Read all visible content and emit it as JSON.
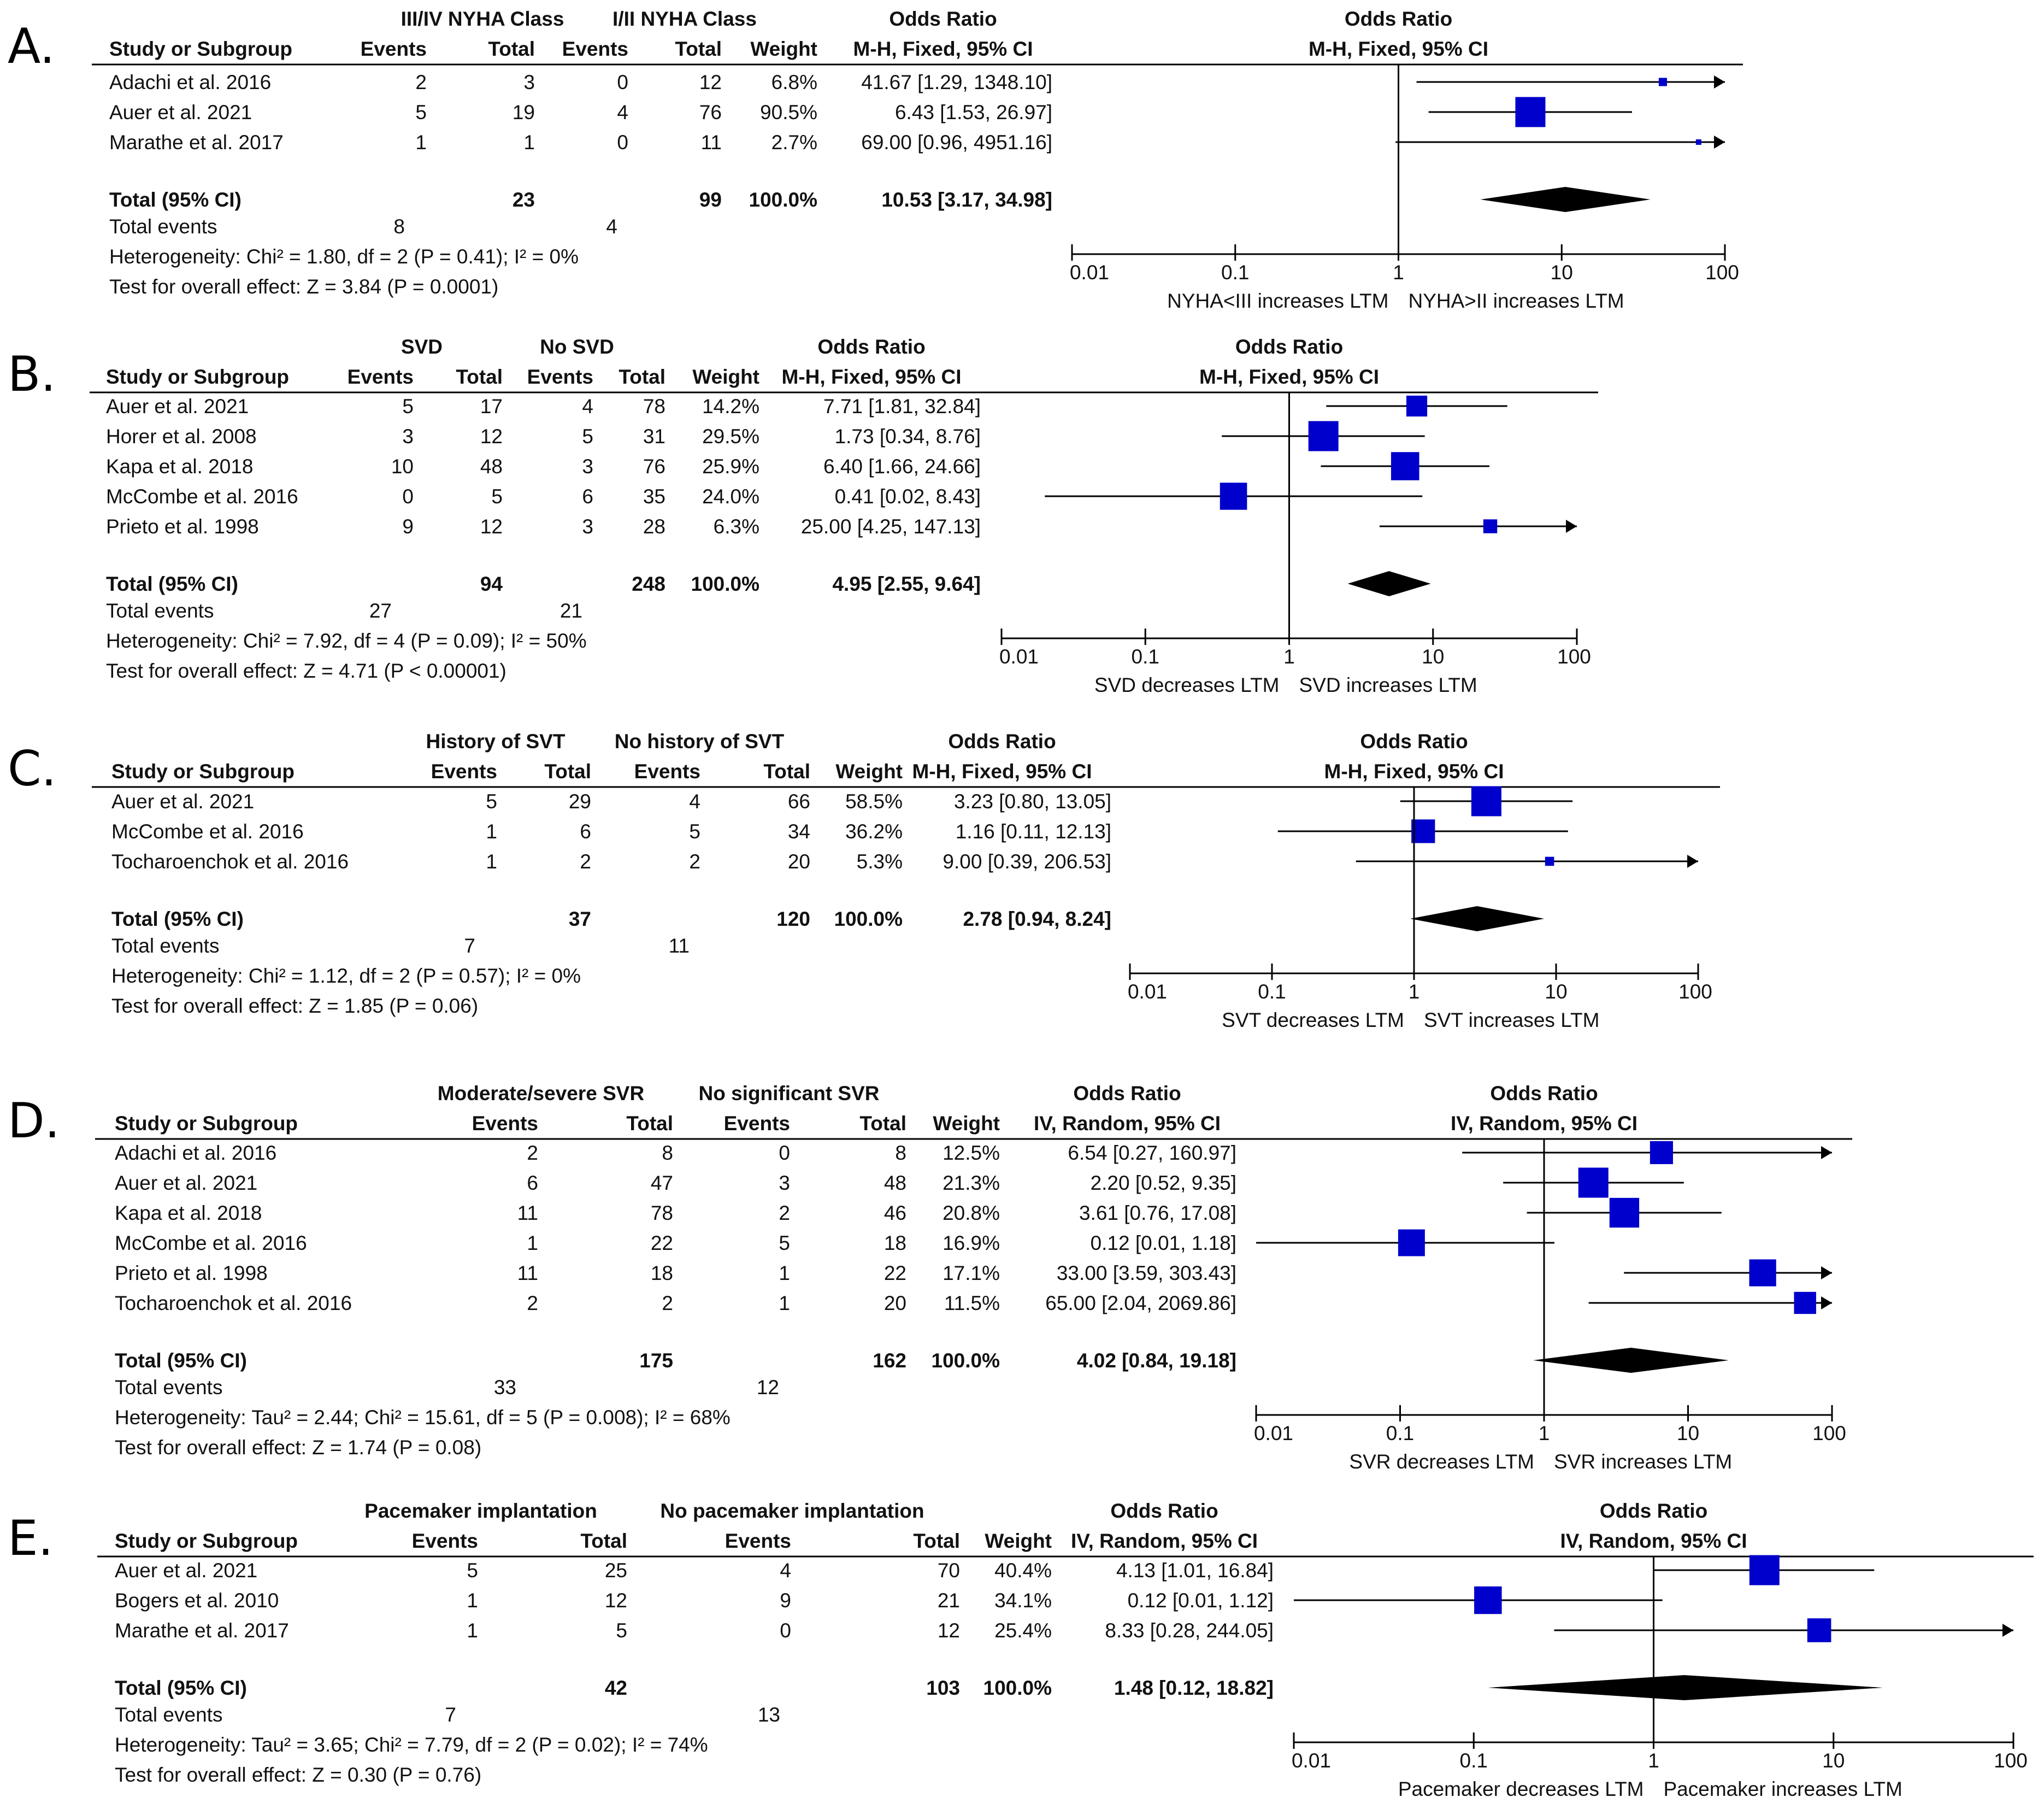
{
  "chart_data": [
    {
      "type": "forest",
      "panel_label": "A.",
      "col_study": "Study or Subgroup",
      "group1_label": "III/IV NYHA Class",
      "group2_label": "I/II NYHA Class",
      "col_events": "Events",
      "col_total": "Total",
      "col_weight": "Weight",
      "effect_header_1": "Odds Ratio",
      "effect_header_2": "M-H, Fixed, 95% CI",
      "plot_header_1": "Odds Ratio",
      "plot_header_2": "M-H, Fixed, 95% CI",
      "x_scale": "log",
      "xlim": [
        0.01,
        100
      ],
      "ticks": [
        "0.01",
        "0.1",
        "1",
        "10",
        "100"
      ],
      "favours_left": "NYHA<III increases LTM",
      "favours_right": "NYHA>II increases LTM",
      "studies": [
        {
          "name": "Adachi et al. 2016",
          "e1": "2",
          "t1": "3",
          "e2": "0",
          "t2": "12",
          "weight": "6.8%",
          "ci_text": "41.67 [1.29, 1348.10]",
          "or": 41.67,
          "lo": 1.29,
          "hi": 1348.1
        },
        {
          "name": "Auer et al. 2021",
          "e1": "5",
          "t1": "19",
          "e2": "4",
          "t2": "76",
          "weight": "90.5%",
          "ci_text": "6.43 [1.53, 26.97]",
          "or": 6.43,
          "lo": 1.53,
          "hi": 26.97
        },
        {
          "name": "Marathe et al. 2017",
          "e1": "1",
          "t1": "1",
          "e2": "0",
          "t2": "11",
          "weight": "2.7%",
          "ci_text": "69.00 [0.96, 4951.16]",
          "or": 69.0,
          "lo": 0.96,
          "hi": 4951.16
        }
      ],
      "total_label": "Total (95% CI)",
      "total": {
        "t1": "23",
        "t2": "99",
        "weight": "100.0%",
        "ci_text": "10.53 [3.17, 34.98]",
        "or": 10.53,
        "lo": 3.17,
        "hi": 34.98
      },
      "total_events_label": "Total events",
      "total_events": {
        "e1": "8",
        "e2": "4"
      },
      "heterogeneity": "Heterogeneity: Chi² = 1.80, df = 2 (P = 0.41); I² = 0%",
      "overall_effect": "Test for overall effect: Z = 3.84 (P = 0.0001)"
    },
    {
      "type": "forest",
      "panel_label": "B.",
      "col_study": "Study or Subgroup",
      "group1_label": "SVD",
      "group2_label": "No SVD",
      "col_events": "Events",
      "col_total": "Total",
      "col_weight": "Weight",
      "effect_header_1": "Odds Ratio",
      "effect_header_2": "M-H, Fixed, 95% CI",
      "plot_header_1": "Odds Ratio",
      "plot_header_2": "M-H, Fixed, 95% CI",
      "x_scale": "log",
      "xlim": [
        0.01,
        100
      ],
      "ticks": [
        "0.01",
        "0.1",
        "1",
        "10",
        "100"
      ],
      "favours_left": "SVD decreases LTM",
      "favours_right": "SVD increases LTM",
      "studies": [
        {
          "name": "Auer et al. 2021",
          "e1": "5",
          "t1": "17",
          "e2": "4",
          "t2": "78",
          "weight": "14.2%",
          "ci_text": "7.71 [1.81, 32.84]",
          "or": 7.71,
          "lo": 1.81,
          "hi": 32.84
        },
        {
          "name": "Horer et al. 2008",
          "e1": "3",
          "t1": "12",
          "e2": "5",
          "t2": "31",
          "weight": "29.5%",
          "ci_text": "1.73 [0.34, 8.76]",
          "or": 1.73,
          "lo": 0.34,
          "hi": 8.76
        },
        {
          "name": "Kapa et al. 2018",
          "e1": "10",
          "t1": "48",
          "e2": "3",
          "t2": "76",
          "weight": "25.9%",
          "ci_text": "6.40 [1.66, 24.66]",
          "or": 6.4,
          "lo": 1.66,
          "hi": 24.66
        },
        {
          "name": "McCombe et al. 2016",
          "e1": "0",
          "t1": "5",
          "e2": "6",
          "t2": "35",
          "weight": "24.0%",
          "ci_text": "0.41 [0.02, 8.43]",
          "or": 0.41,
          "lo": 0.02,
          "hi": 8.43
        },
        {
          "name": "Prieto et al. 1998",
          "e1": "9",
          "t1": "12",
          "e2": "3",
          "t2": "28",
          "weight": "6.3%",
          "ci_text": "25.00 [4.25, 147.13]",
          "or": 25.0,
          "lo": 4.25,
          "hi": 147.13
        }
      ],
      "total_label": "Total (95% CI)",
      "total": {
        "t1": "94",
        "t2": "248",
        "weight": "100.0%",
        "ci_text": "4.95 [2.55, 9.64]",
        "or": 4.95,
        "lo": 2.55,
        "hi": 9.64
      },
      "total_events_label": "Total events",
      "total_events": {
        "e1": "27",
        "e2": "21"
      },
      "heterogeneity": "Heterogeneity: Chi² = 7.92, df = 4 (P = 0.09); I² = 50%",
      "overall_effect": "Test for overall effect: Z = 4.71 (P < 0.00001)"
    },
    {
      "type": "forest",
      "panel_label": "C.",
      "col_study": "Study or Subgroup",
      "group1_label": "History of SVT",
      "group2_label": "No history of SVT",
      "col_events": "Events",
      "col_total": "Total",
      "col_weight": "Weight",
      "effect_header_1": "Odds Ratio",
      "effect_header_2": "M-H, Fixed, 95% CI",
      "plot_header_1": "Odds Ratio",
      "plot_header_2": "M-H, Fixed, 95% CI",
      "x_scale": "log",
      "xlim": [
        0.01,
        100
      ],
      "ticks": [
        "0.01",
        "0.1",
        "1",
        "10",
        "100"
      ],
      "favours_left": "SVT decreases LTM",
      "favours_right": "SVT increases LTM",
      "studies": [
        {
          "name": "Auer et al. 2021",
          "e1": "5",
          "t1": "29",
          "e2": "4",
          "t2": "66",
          "weight": "58.5%",
          "ci_text": "3.23 [0.80, 13.05]",
          "or": 3.23,
          "lo": 0.8,
          "hi": 13.05
        },
        {
          "name": "McCombe et al. 2016",
          "e1": "1",
          "t1": "6",
          "e2": "5",
          "t2": "34",
          "weight": "36.2%",
          "ci_text": "1.16 [0.11, 12.13]",
          "or": 1.16,
          "lo": 0.11,
          "hi": 12.13
        },
        {
          "name": "Tocharoenchok et al. 2016",
          "e1": "1",
          "t1": "2",
          "e2": "2",
          "t2": "20",
          "weight": "5.3%",
          "ci_text": "9.00 [0.39, 206.53]",
          "or": 9.0,
          "lo": 0.39,
          "hi": 206.53
        }
      ],
      "total_label": "Total (95% CI)",
      "total": {
        "t1": "37",
        "t2": "120",
        "weight": "100.0%",
        "ci_text": "2.78 [0.94, 8.24]",
        "or": 2.78,
        "lo": 0.94,
        "hi": 8.24
      },
      "total_events_label": "Total events",
      "total_events": {
        "e1": "7",
        "e2": "11"
      },
      "heterogeneity": "Heterogeneity: Chi² = 1.12, df = 2 (P = 0.57); I² = 0%",
      "overall_effect": "Test for overall effect: Z = 1.85 (P = 0.06)"
    },
    {
      "type": "forest",
      "panel_label": "D.",
      "col_study": "Study or Subgroup",
      "group1_label": "Moderate/severe SVR",
      "group2_label": "No significant SVR",
      "col_events": "Events",
      "col_total": "Total",
      "col_weight": "Weight",
      "effect_header_1": "Odds Ratio",
      "effect_header_2": "IV, Random, 95% CI",
      "plot_header_1": "Odds Ratio",
      "plot_header_2": "IV, Random, 95% CI",
      "x_scale": "log",
      "xlim": [
        0.01,
        100
      ],
      "ticks": [
        "0.01",
        "0.1",
        "1",
        "10",
        "100"
      ],
      "favours_left": "SVR decreases LTM",
      "favours_right": "SVR increases LTM",
      "studies": [
        {
          "name": "Adachi et al. 2016",
          "e1": "2",
          "t1": "8",
          "e2": "0",
          "t2": "8",
          "weight": "12.5%",
          "ci_text": "6.54 [0.27, 160.97]",
          "or": 6.54,
          "lo": 0.27,
          "hi": 160.97
        },
        {
          "name": "Auer et al. 2021",
          "e1": "6",
          "t1": "47",
          "e2": "3",
          "t2": "48",
          "weight": "21.3%",
          "ci_text": "2.20 [0.52, 9.35]",
          "or": 2.2,
          "lo": 0.52,
          "hi": 9.35
        },
        {
          "name": "Kapa et al. 2018",
          "e1": "11",
          "t1": "78",
          "e2": "2",
          "t2": "46",
          "weight": "20.8%",
          "ci_text": "3.61 [0.76, 17.08]",
          "or": 3.61,
          "lo": 0.76,
          "hi": 17.08
        },
        {
          "name": "McCombe et al. 2016",
          "e1": "1",
          "t1": "22",
          "e2": "5",
          "t2": "18",
          "weight": "16.9%",
          "ci_text": "0.12 [0.01, 1.18]",
          "or": 0.12,
          "lo": 0.01,
          "hi": 1.18
        },
        {
          "name": "Prieto et al. 1998",
          "e1": "11",
          "t1": "18",
          "e2": "1",
          "t2": "22",
          "weight": "17.1%",
          "ci_text": "33.00 [3.59, 303.43]",
          "or": 33.0,
          "lo": 3.59,
          "hi": 303.43
        },
        {
          "name": "Tocharoenchok et al. 2016",
          "e1": "2",
          "t1": "2",
          "e2": "1",
          "t2": "20",
          "weight": "11.5%",
          "ci_text": "65.00 [2.04, 2069.86]",
          "or": 65.0,
          "lo": 2.04,
          "hi": 2069.86
        }
      ],
      "total_label": "Total (95% CI)",
      "total": {
        "t1": "175",
        "t2": "162",
        "weight": "100.0%",
        "ci_text": "4.02 [0.84, 19.18]",
        "or": 4.02,
        "lo": 0.84,
        "hi": 19.18
      },
      "total_events_label": "Total events",
      "total_events": {
        "e1": "33",
        "e2": "12"
      },
      "heterogeneity": "Heterogeneity: Tau² = 2.44; Chi² = 15.61, df = 5 (P = 0.008); I² = 68%",
      "overall_effect": "Test for overall effect: Z = 1.74 (P = 0.08)"
    },
    {
      "type": "forest",
      "panel_label": "E.",
      "col_study": "Study or Subgroup",
      "group1_label": "Pacemaker implantation",
      "group2_label": "No pacemaker implantation",
      "col_events": "Events",
      "col_total": "Total",
      "col_weight": "Weight",
      "effect_header_1": "Odds Ratio",
      "effect_header_2": "IV, Random, 95% CI",
      "plot_header_1": "Odds Ratio",
      "plot_header_2": "IV, Random, 95% CI",
      "x_scale": "log",
      "xlim": [
        0.01,
        100
      ],
      "ticks": [
        "0.01",
        "0.1",
        "1",
        "10",
        "100"
      ],
      "favours_left": "Pacemaker decreases LTM",
      "favours_right": "Pacemaker increases LTM",
      "studies": [
        {
          "name": "Auer et al. 2021",
          "e1": "5",
          "t1": "25",
          "e2": "4",
          "t2": "70",
          "weight": "40.4%",
          "ci_text": "4.13 [1.01, 16.84]",
          "or": 4.13,
          "lo": 1.01,
          "hi": 16.84
        },
        {
          "name": "Bogers et al. 2010",
          "e1": "1",
          "t1": "12",
          "e2": "9",
          "t2": "21",
          "weight": "34.1%",
          "ci_text": "0.12 [0.01, 1.12]",
          "or": 0.12,
          "lo": 0.01,
          "hi": 1.12
        },
        {
          "name": "Marathe et al. 2017",
          "e1": "1",
          "t1": "5",
          "e2": "0",
          "t2": "12",
          "weight": "25.4%",
          "ci_text": "8.33 [0.28, 244.05]",
          "or": 8.33,
          "lo": 0.28,
          "hi": 244.05
        }
      ],
      "total_label": "Total (95% CI)",
      "total": {
        "t1": "42",
        "t2": "103",
        "weight": "100.0%",
        "ci_text": "1.48 [0.12, 18.82]",
        "or": 1.48,
        "lo": 0.12,
        "hi": 18.82
      },
      "total_events_label": "Total events",
      "total_events": {
        "e1": "7",
        "e2": "13"
      },
      "heterogeneity": "Heterogeneity: Tau² = 3.65; Chi² = 7.79, df = 2 (P = 0.02); I² = 74%",
      "overall_effect": "Test for overall effect: Z = 0.30 (P = 0.76)"
    }
  ],
  "colors": {
    "marker": "#0000cc",
    "diamond": "#000000",
    "line": "#000000"
  }
}
